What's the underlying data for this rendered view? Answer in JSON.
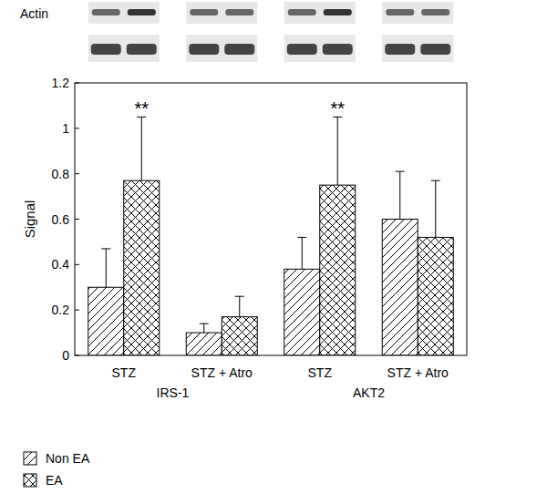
{
  "chart_data": {
    "type": "bar",
    "blot_label": "Actin",
    "y_label": "Signal",
    "categories": [
      "STZ",
      "STZ + Atro",
      "STZ",
      "STZ + Atro"
    ],
    "groups": [
      "IRS-1",
      "IRS-1",
      "AKT2",
      "AKT2"
    ],
    "ylim": [
      0,
      1.2
    ],
    "yticks": [
      0,
      0.2,
      0.4,
      0.6,
      0.8,
      1,
      1.2
    ],
    "grid": false,
    "legend": "bottom-left",
    "series": [
      {
        "name": "Non EA",
        "color": "#000000",
        "values": [
          0.3,
          0.1,
          0.38,
          0.6
        ],
        "errors": [
          0.17,
          0.04,
          0.14,
          0.21
        ]
      },
      {
        "name": "EA",
        "color": "#000000",
        "values": [
          0.77,
          0.17,
          0.75,
          0.52
        ],
        "errors": [
          0.28,
          0.09,
          0.3,
          0.25
        ],
        "annotations": [
          "**",
          null,
          "**",
          null
        ]
      }
    ]
  }
}
